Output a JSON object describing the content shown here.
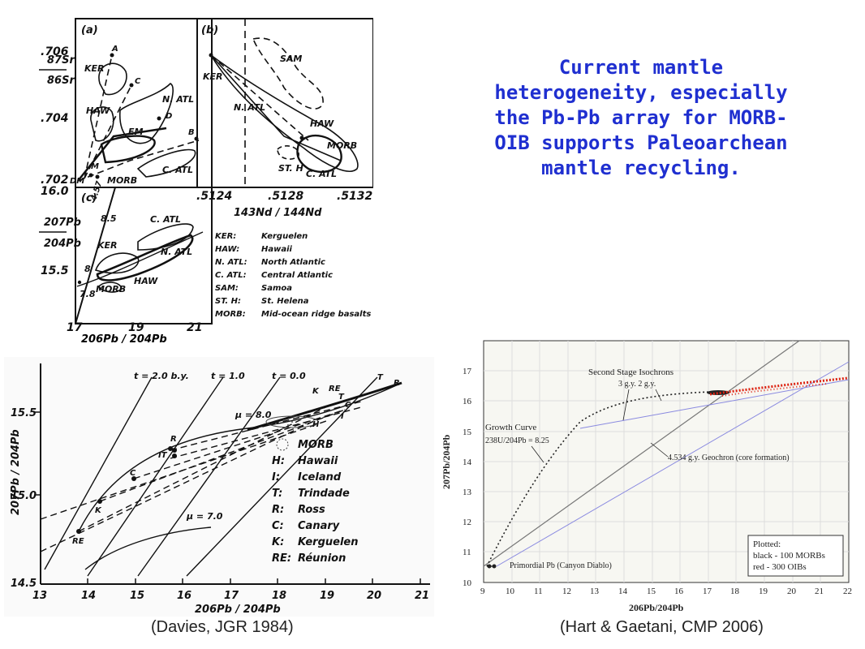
{
  "title": "Current mantle heterogeneity, especially the Pb-Pb array for MORB-OIB supports Paleoarchean mantle recycling.",
  "captions": {
    "left": "(Davies, JGR 1984)",
    "right": "(Hart & Gaetani, CMP 2006)"
  },
  "fig_a": {
    "panel_label": "(a)",
    "ylabel_top": "87Sr",
    "ylabel_bottom": "86Sr",
    "yticks": [
      ".706",
      ".704",
      ".702"
    ],
    "labels": [
      "KER",
      "HAW",
      "EM",
      "N. ATL",
      "C. ATL",
      "MORB",
      "DM",
      "A",
      "B",
      "C",
      "D",
      "M"
    ]
  },
  "fig_b": {
    "panel_label": "(b)",
    "xlabel": "143Nd / 144Nd",
    "xticks": [
      ".5124",
      ".5128",
      ".5132"
    ],
    "labels": [
      "SAM",
      "KER",
      "N. ATL",
      "HAW",
      "MORB",
      "ST. H",
      "C. ATL"
    ]
  },
  "fig_c": {
    "panel_label": "(c)",
    "ylabel_top": "207Pb",
    "ylabel_bottom": "204Pb",
    "xlabel": "206Pb / 204Pb",
    "yticks": [
      "16.0",
      "15.5"
    ],
    "xticks": [
      "17",
      "19",
      "21"
    ],
    "labels": [
      "4.57",
      "8.5",
      "8",
      "7.8",
      "KER",
      "HAW",
      "MORB",
      "C. ATL",
      "N. ATL"
    ],
    "legend": [
      {
        "abbr": "KER:",
        "name": "Kerguelen"
      },
      {
        "abbr": "HAW:",
        "name": "Hawaii"
      },
      {
        "abbr": "N. ATL:",
        "name": "North Atlantic"
      },
      {
        "abbr": "C. ATL:",
        "name": "Central Atlantic"
      },
      {
        "abbr": "SAM:",
        "name": "Samoa"
      },
      {
        "abbr": "ST. H:",
        "name": "St. Helena"
      },
      {
        "abbr": "MORB:",
        "name": "Mid-ocean ridge basalts"
      }
    ]
  },
  "davies": {
    "ylabel": "207Pb / 204Pb",
    "xlabel": "206Pb / 204Pb",
    "yticks": [
      "15.5",
      "15.0",
      "14.5"
    ],
    "xticks": [
      "13",
      "14",
      "15",
      "16",
      "17",
      "18",
      "19",
      "20",
      "21"
    ],
    "isochrons": [
      "t = 2.0 b.y.",
      "t = 1.0",
      "t = 0.0"
    ],
    "mu_labels": [
      "μ = 8.0",
      "μ = 7.0"
    ],
    "legend": [
      {
        "abbr": "",
        "name": "MORB"
      },
      {
        "abbr": "H:",
        "name": "Hawaii"
      },
      {
        "abbr": "I:",
        "name": "Iceland"
      },
      {
        "abbr": "T:",
        "name": "Trindade"
      },
      {
        "abbr": "R:",
        "name": "Ross"
      },
      {
        "abbr": "C:",
        "name": "Canary"
      },
      {
        "abbr": "K:",
        "name": "Kerguelen"
      },
      {
        "abbr": "RE:",
        "name": "Réunion"
      }
    ],
    "point_labels": [
      "K",
      "RE",
      "T",
      "C",
      "R",
      "C",
      "R",
      "K",
      "RE",
      "H",
      "IT",
      "R",
      "C",
      "K",
      "RE",
      "T",
      "C",
      "I"
    ]
  },
  "hart": {
    "ylabel": "207Pb/204Pb",
    "xlabel": "206Pb/204Pb",
    "yticks": [
      "10",
      "11",
      "12",
      "13",
      "14",
      "15",
      "16",
      "17"
    ],
    "xticks": [
      "9",
      "10",
      "11",
      "12",
      "13",
      "14",
      "15",
      "16",
      "17",
      "18",
      "19",
      "20",
      "21",
      "22"
    ],
    "annotations": {
      "isochrons": "Second Stage Isochrons",
      "iso_ages": "3 g.y.   2 g.y.",
      "growth": "Growth Curve",
      "growth_ratio": "238U/204Pb = 8.25",
      "geochron": "4.534 g.y. Geochron (core formation)",
      "primordial": "Primordial Pb (Canyon Diablo)"
    },
    "box": [
      "Plotted:",
      "black - 100 MORBs",
      "red - 300 OIBs"
    ]
  }
}
